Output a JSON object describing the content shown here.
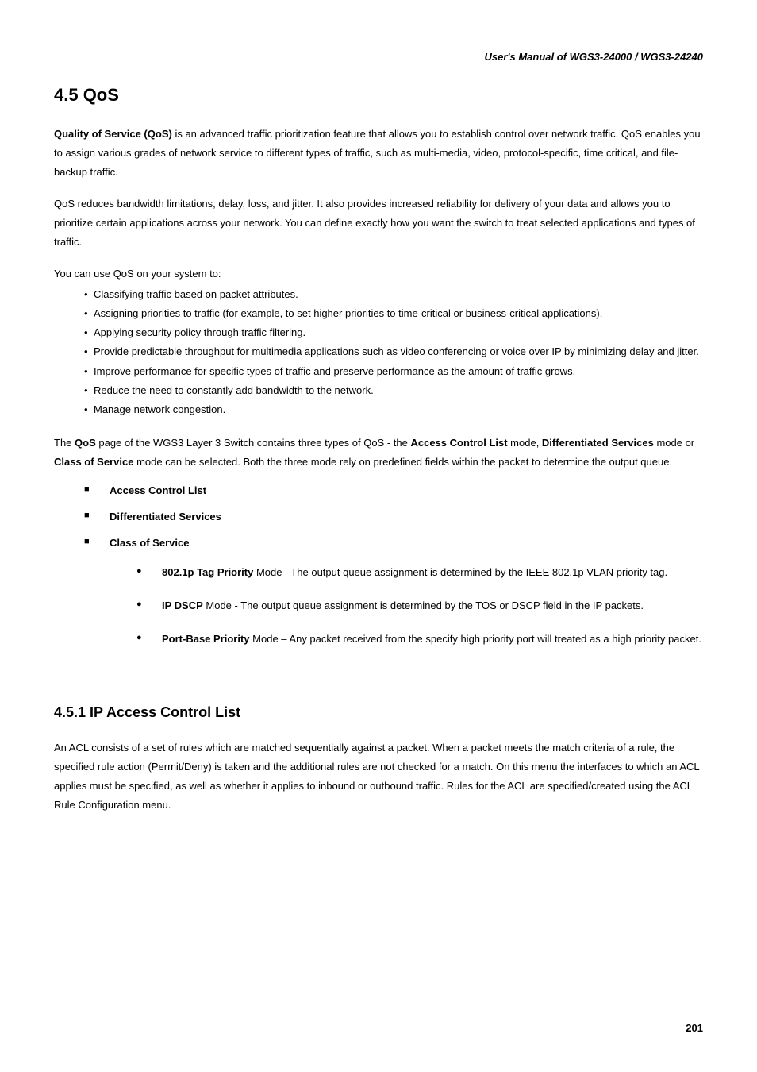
{
  "header": "User's Manual of WGS3-24000 / WGS3-24240",
  "section_title": "4.5 QoS",
  "para1_prefix": "Quality of Service (QoS)",
  "para1_rest": " is an advanced traffic prioritization feature that allows you to establish control over network traffic. QoS enables you to assign various grades of network service to different types of traffic, such as multi-media, video, protocol-specific, time critical, and file-backup traffic.",
  "para2": "QoS reduces bandwidth limitations, delay, loss, and jitter. It also provides increased reliability for delivery of your data and allows you to prioritize certain applications across your network. You can define exactly how you want the switch to treat selected applications and types of traffic.",
  "para3": "You can use QoS on your system to:",
  "bullets": {
    "b1": "Classifying traffic based on packet attributes.",
    "b2": "Assigning priorities to traffic (for example, to set higher priorities to time-critical or business-critical applications).",
    "b3": "Applying security policy through traffic filtering.",
    "b4": "Provide predictable throughput for multimedia applications such as video conferencing or voice over IP by minimizing delay and jitter.",
    "b5": "Improve performance for specific types of traffic and preserve performance as the amount of traffic grows.",
    "b6": "Reduce the need to constantly add bandwidth to the network.",
    "b7": "Manage network congestion."
  },
  "para4_a": "The ",
  "para4_b": "QoS",
  "para4_c": " page of the WGS3 Layer 3 Switch contains three types of QoS - the ",
  "para4_d": "Access Control List",
  "para4_e": " mode, ",
  "para4_f": "Differentiated Services",
  "para4_g": " mode or ",
  "para4_h": "Class of Service",
  "para4_i": " mode can be selected. Both the three mode rely on predefined fields within the packet to determine the output queue.",
  "modes": {
    "m1": "Access Control List",
    "m2": "Differentiated Services",
    "m3": "Class of Service"
  },
  "submodes": {
    "s1_b": "802.1p Tag Priority",
    "s1_r": " Mode –The output queue assignment is determined by the IEEE 802.1p VLAN priority tag.",
    "s2_b": "IP DSCP",
    "s2_r": " Mode - The output queue assignment is determined by the TOS or DSCP field in the IP packets.",
    "s3_b": "Port-Base Priority",
    "s3_r": " Mode – Any packet received from the specify high priority port will treated as a high priority packet."
  },
  "subsection_title": "4.5.1   IP Access Control List",
  "para5": "An ACL consists of a set of rules which are matched sequentially against a packet. When a packet meets the match criteria of a rule, the specified rule action (Permit/Deny) is taken and the additional rules are not checked for a match. On this menu the interfaces to which an ACL applies must be specified, as well as whether it applies to inbound or outbound traffic. Rules for the ACL are specified/created using the ACL Rule Configuration menu.",
  "page_number": "201",
  "colors": {
    "text": "#000000",
    "background": "#ffffff"
  },
  "fonts": {
    "body_size_pt": 10,
    "h1_size_pt": 16,
    "h2_size_pt": 13
  }
}
